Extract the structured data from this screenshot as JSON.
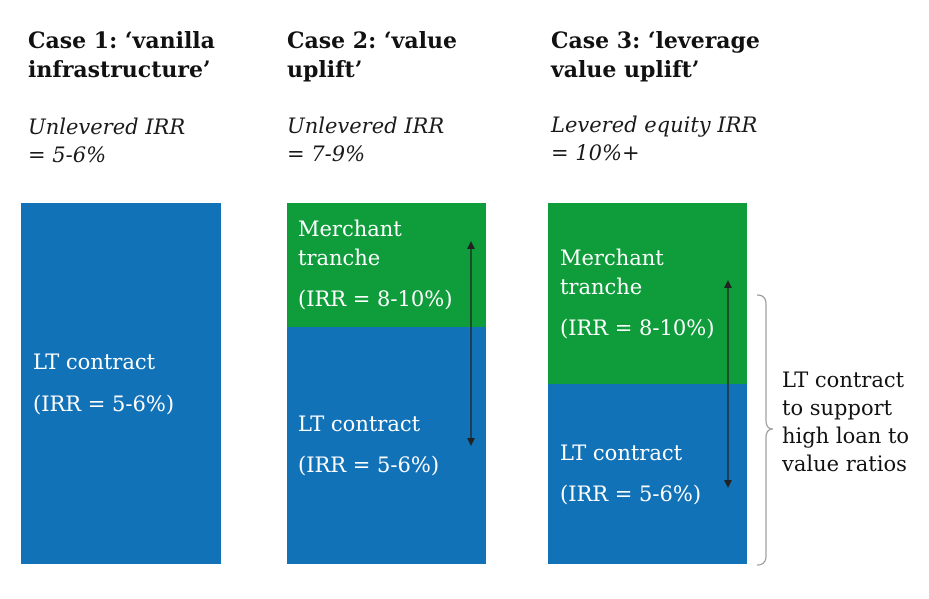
{
  "colors": {
    "blue": "#1272b8",
    "green": "#0e9d3a"
  },
  "cases": [
    {
      "heading": [
        "Case 1: ‘vanilla",
        "infrastructure’"
      ],
      "irr": [
        "Unlevered IRR",
        "= 5-6%"
      ],
      "blocks": [
        {
          "lines": [
            "LT contract"
          ],
          "irr": "(IRR = 5-6%)"
        }
      ]
    },
    {
      "heading": [
        "Case 2: ‘value",
        "uplift’"
      ],
      "irr": [
        "Unlevered IRR",
        "= 7-9%"
      ],
      "blocks": [
        {
          "lines": [
            "Merchant",
            "tranche"
          ],
          "irr": "(IRR = 8-10%)"
        },
        {
          "lines": [
            "LT contract"
          ],
          "irr": "(IRR = 5-6%)"
        }
      ]
    },
    {
      "heading": [
        "Case 3: ‘leverage",
        "value uplift’"
      ],
      "irr": [
        "Levered equity IRR",
        "= 10%+"
      ],
      "blocks": [
        {
          "lines": [
            "Merchant",
            "tranche"
          ],
          "irr": "(IRR = 8-10%)"
        },
        {
          "lines": [
            "LT contract"
          ],
          "irr": "(IRR = 5-6%)"
        }
      ]
    }
  ],
  "annotation": [
    "LT contract",
    "to support",
    "high loan to",
    "value ratios"
  ]
}
